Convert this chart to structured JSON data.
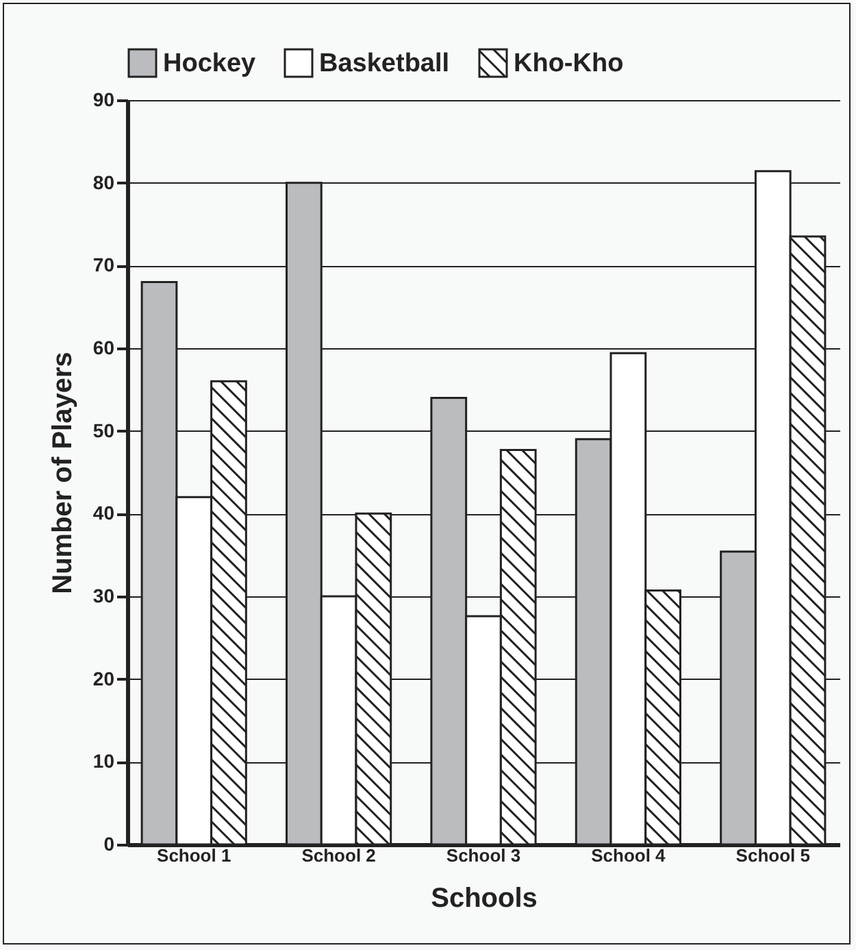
{
  "chart_data": {
    "type": "bar",
    "xlabel": "Schools",
    "ylabel": "Number of Players",
    "categories": [
      "School 1",
      "School 2",
      "School 3",
      "School 4",
      "School 5"
    ],
    "series": [
      {
        "name": "Hockey",
        "color": "#bbbcc0",
        "values": [
          68,
          80,
          54,
          49,
          35.4
        ]
      },
      {
        "name": "Basketball",
        "color": "#ffffff",
        "values": [
          42,
          30,
          27.6,
          59.4,
          81.4
        ]
      },
      {
        "name": "Kho-Kho",
        "color": "#222222",
        "values": [
          56,
          40,
          47.7,
          30.7,
          73.5
        ]
      }
    ],
    "ylim": [
      0,
      90
    ],
    "yticks": [
      0,
      10,
      20,
      30,
      40,
      50,
      60,
      70,
      80,
      90
    ],
    "grid": "y",
    "legend": "top"
  }
}
